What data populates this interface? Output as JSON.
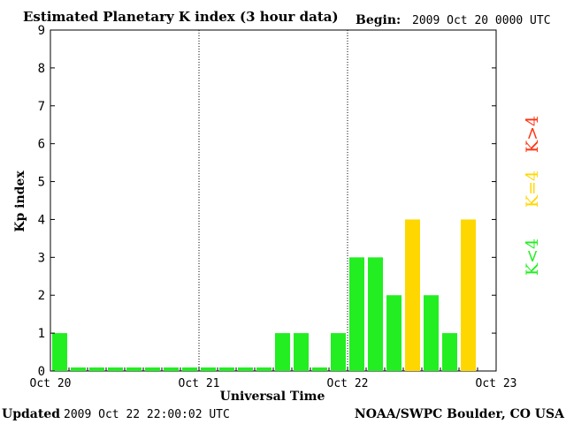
{
  "header": {
    "title": "Estimated Planetary K index (3 hour data)",
    "begin_label": "Begin:",
    "begin_value": "2009 Oct 20 0000 UTC"
  },
  "footer": {
    "updated_label": "Updated",
    "updated_value": "2009 Oct 22 22:00:02 UTC",
    "source": "NOAA/SWPC Boulder, CO USA"
  },
  "legend": {
    "high": "K>4",
    "equal": "K=4",
    "low": "K<4"
  },
  "colors": {
    "low": "#22ee22",
    "equal": "#ffd700",
    "high": "#ff3311"
  },
  "chart_data": {
    "type": "bar",
    "title": "Estimated Planetary K index (3 hour data)",
    "xlabel": "Universal Time",
    "ylabel": "Kp index",
    "ylim": [
      0,
      9
    ],
    "yticks": [
      0,
      1,
      2,
      3,
      4,
      5,
      6,
      7,
      8,
      9
    ],
    "x_ticks": [
      "Oct 20",
      "Oct 21",
      "Oct 22",
      "Oct 23"
    ],
    "bars_per_day": 8,
    "values": [
      1,
      0,
      0,
      0,
      0,
      0,
      0,
      0,
      0,
      0,
      0,
      0,
      1,
      1,
      0,
      1,
      3,
      3,
      2,
      4,
      2,
      1,
      4
    ],
    "grid": "dotted vertical lines at day boundaries"
  }
}
